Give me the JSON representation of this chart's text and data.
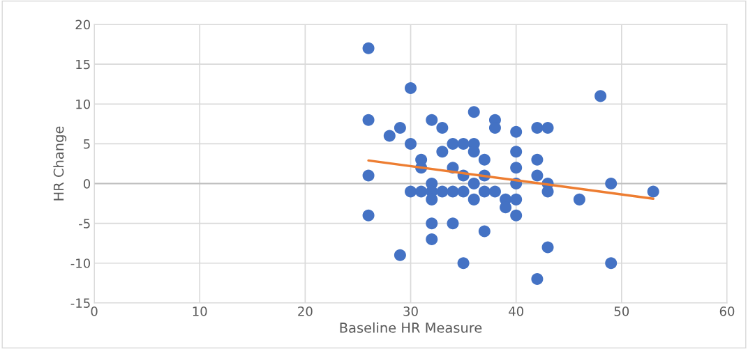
{
  "chart_data": {
    "type": "scatter",
    "xlabel": "Baseline HR Measure",
    "ylabel": "HR Change",
    "xlim": [
      0,
      60
    ],
    "ylim": [
      -15,
      20
    ],
    "xticks": [
      0,
      10,
      20,
      30,
      40,
      50,
      60
    ],
    "yticks": [
      -15,
      -10,
      -5,
      0,
      5,
      10,
      15,
      20
    ],
    "grid": true,
    "legend": false,
    "series": [
      {
        "marker": "circle",
        "color": "#4472c4",
        "x": [
          26,
          26,
          26,
          26,
          28,
          29,
          29,
          30,
          30,
          30,
          31,
          31,
          31,
          32,
          32,
          32,
          32,
          32,
          32,
          33,
          33,
          33,
          34,
          34,
          34,
          34,
          35,
          35,
          35,
          35,
          36,
          36,
          36,
          36,
          36,
          37,
          37,
          37,
          37,
          38,
          38,
          38,
          39,
          39,
          40,
          40,
          40,
          40,
          40,
          40,
          42,
          42,
          42,
          42,
          43,
          43,
          43,
          43,
          46,
          48,
          49,
          49,
          53
        ],
        "values": [
          17,
          8,
          1,
          -4,
          6,
          7,
          -9,
          12,
          5,
          -1,
          3,
          2,
          -1,
          8,
          0,
          -1,
          -2,
          -5,
          -7,
          7,
          4,
          -1,
          5,
          2,
          -1,
          -5,
          5,
          1,
          -1,
          -10,
          9,
          5,
          4,
          0,
          -2,
          3,
          1,
          -1,
          -6,
          8,
          7,
          -1,
          -2,
          -3,
          6.5,
          4,
          2,
          0,
          -2,
          -4,
          7,
          3,
          1,
          -12,
          7,
          0,
          -1,
          -8,
          -2,
          11,
          0,
          -10,
          -1
        ]
      },
      {
        "type": "line",
        "marker": "none",
        "color": "#ed7d31",
        "x": [
          26,
          53
        ],
        "values": [
          2.9,
          -1.9
        ]
      }
    ]
  }
}
